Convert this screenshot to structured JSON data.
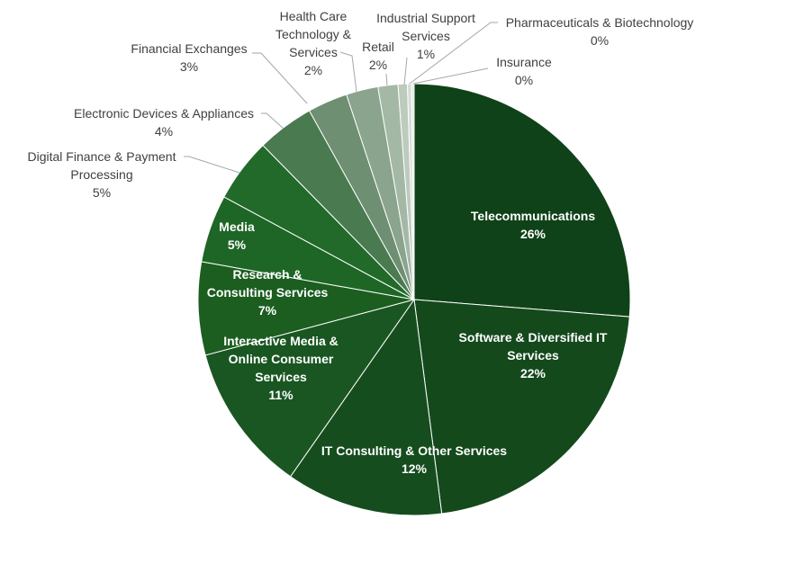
{
  "chart_data": {
    "type": "pie",
    "title": "",
    "slices": [
      {
        "label_lines": [
          "Telecommunications"
        ],
        "pct_label": "26%",
        "value": 26.4,
        "color": "#0f4218",
        "label_inside": true
      },
      {
        "label_lines": [
          "Software & Diversified IT",
          "Services"
        ],
        "pct_label": "22%",
        "value": 21.8,
        "color": "#14491c",
        "label_inside": true
      },
      {
        "label_lines": [
          "IT Consulting & Other Services"
        ],
        "pct_label": "12%",
        "value": 11.8,
        "color": "#164d1e",
        "label_inside": true
      },
      {
        "label_lines": [
          "Interactive Media &",
          "Online Consumer",
          "Services"
        ],
        "pct_label": "11%",
        "value": 11.2,
        "color": "#1a5622",
        "label_inside": true
      },
      {
        "label_lines": [
          "Research &",
          "Consulting Services"
        ],
        "pct_label": "7%",
        "value": 7.0,
        "color": "#1b5e20",
        "label_inside": true
      },
      {
        "label_lines": [
          "Media"
        ],
        "pct_label": "5%",
        "value": 5.1,
        "color": "#1e6626",
        "label_inside": true
      },
      {
        "label_lines": [
          "Digital Finance & Payment",
          "Processing"
        ],
        "pct_label": "5%",
        "value": 4.8,
        "color": "#216a2a",
        "label_inside": false
      },
      {
        "label_lines": [
          "Electronic Devices & Appliances"
        ],
        "pct_label": "4%",
        "value": 4.3,
        "color": "#4a7a50",
        "label_inside": false
      },
      {
        "label_lines": [
          "Financial Exchanges"
        ],
        "pct_label": "3%",
        "value": 3.0,
        "color": "#6e8f72",
        "label_inside": false
      },
      {
        "label_lines": [
          "Health Care",
          "Technology &",
          "Services"
        ],
        "pct_label": "2%",
        "value": 2.4,
        "color": "#8aa48d",
        "label_inside": false
      },
      {
        "label_lines": [
          "Retail"
        ],
        "pct_label": "2%",
        "value": 1.5,
        "color": "#a4b8a6",
        "label_inside": false
      },
      {
        "label_lines": [
          "Industrial Support",
          "Services"
        ],
        "pct_label": "1%",
        "value": 0.7,
        "color": "#bccbbd",
        "label_inside": false
      },
      {
        "label_lines": [
          "Pharmaceuticals & Biotechnology"
        ],
        "pct_label": "0%",
        "value": 0.3,
        "color": "#d3ddd4",
        "label_inside": false
      },
      {
        "label_lines": [
          "Insurance"
        ],
        "pct_label": "0%",
        "value": 0.2,
        "color": "#e3e9e4",
        "label_inside": false
      }
    ]
  }
}
